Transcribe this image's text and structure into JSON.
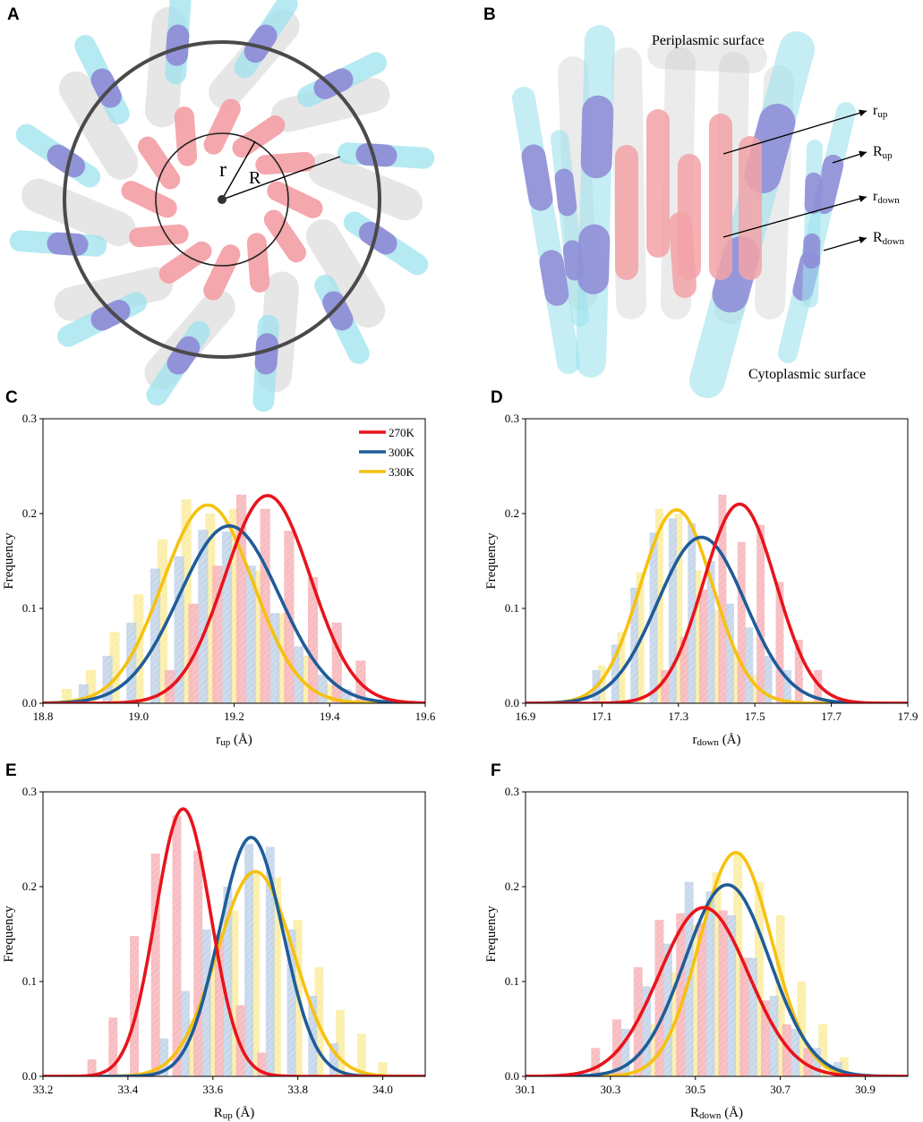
{
  "panels": {
    "a": {
      "label": "A",
      "r": "r",
      "R": "R"
    },
    "b": {
      "label": "B",
      "periplasmic": "Periplasmic surface",
      "cytoplasmic": "Cytoplasmic surface",
      "ann": [
        {
          "main": "r",
          "sub": "up"
        },
        {
          "main": "R",
          "sub": "up"
        },
        {
          "main": "r",
          "sub": "down"
        },
        {
          "main": "R",
          "sub": "down"
        }
      ]
    }
  },
  "colors": {
    "270K": "#e8141c",
    "300K": "#1f5c99",
    "330K": "#f6c10f",
    "bar270": "#f7b8bd",
    "bar300": "#c5d6ea",
    "bar330": "#fbeea6",
    "helixPink": "#f4a3a8",
    "helixPurple": "#8e8ad6",
    "helixCyan": "#9ee3ee",
    "helixGray": "#c8c8c8"
  },
  "legend": [
    "270K",
    "300K",
    "330K"
  ],
  "chart_data": [
    {
      "panel": "C",
      "type": "bar",
      "ylabel": "Frequency",
      "xlabel_main": "r",
      "xlabel_sub": "up",
      "xlabel_unit": " (Å)",
      "xlim": [
        18.8,
        19.6
      ],
      "ylim": [
        0,
        0.3
      ],
      "binwidth": 0.05,
      "xticks": [
        "18.8",
        "19.0",
        "19.2",
        "19.4",
        "19.6"
      ],
      "yticks": [
        "0.0",
        "0.1",
        "0.2",
        "0.3"
      ],
      "series": [
        {
          "name": "270K",
          "mu": 19.27,
          "sigma": 0.09,
          "peak": 0.219,
          "bars": [
            [
              19.05,
              0.035
            ],
            [
              19.1,
              0.105
            ],
            [
              19.15,
              0.145
            ],
            [
              19.2,
              0.22
            ],
            [
              19.25,
              0.205
            ],
            [
              19.3,
              0.182
            ],
            [
              19.35,
              0.133
            ],
            [
              19.4,
              0.085
            ],
            [
              19.45,
              0.045
            ]
          ]
        },
        {
          "name": "300K",
          "mu": 19.19,
          "sigma": 0.105,
          "peak": 0.187,
          "bars": [
            [
              18.9,
              0.02
            ],
            [
              18.95,
              0.05
            ],
            [
              19.0,
              0.085
            ],
            [
              19.05,
              0.142
            ],
            [
              19.1,
              0.155
            ],
            [
              19.15,
              0.183
            ],
            [
              19.2,
              0.181
            ],
            [
              19.25,
              0.145
            ],
            [
              19.3,
              0.095
            ],
            [
              19.35,
              0.06
            ],
            [
              19.4,
              0.03
            ],
            [
              19.45,
              0.015
            ]
          ]
        },
        {
          "name": "330K",
          "mu": 19.145,
          "sigma": 0.095,
          "peak": 0.209,
          "bars": [
            [
              18.85,
              0.015
            ],
            [
              18.9,
              0.035
            ],
            [
              18.95,
              0.075
            ],
            [
              19.0,
              0.115
            ],
            [
              19.05,
              0.173
            ],
            [
              19.1,
              0.215
            ],
            [
              19.15,
              0.2
            ],
            [
              19.2,
              0.205
            ],
            [
              19.25,
              0.14
            ],
            [
              19.3,
              0.095
            ],
            [
              19.35,
              0.05
            ],
            [
              19.4,
              0.02
            ]
          ]
        }
      ]
    },
    {
      "panel": "D",
      "type": "bar",
      "ylabel": "Frequency",
      "xlabel_main": "r",
      "xlabel_sub": "down",
      "xlabel_unit": " (Å)",
      "xlim": [
        16.9,
        17.9
      ],
      "ylim": [
        0,
        0.3
      ],
      "binwidth": 0.05,
      "xticks": [
        "16.9",
        "17.1",
        "17.3",
        "17.5",
        "17.7",
        "17.9"
      ],
      "yticks": [
        "0.0",
        "0.1",
        "0.2",
        "0.3"
      ],
      "series": [
        {
          "name": "270K",
          "mu": 17.46,
          "sigma": 0.095,
          "peak": 0.21,
          "bars": [
            [
              17.25,
              0.035
            ],
            [
              17.3,
              0.07
            ],
            [
              17.35,
              0.12
            ],
            [
              17.4,
              0.22
            ],
            [
              17.45,
              0.17
            ],
            [
              17.5,
              0.188
            ],
            [
              17.55,
              0.128
            ],
            [
              17.6,
              0.067
            ],
            [
              17.65,
              0.035
            ]
          ]
        },
        {
          "name": "300K",
          "mu": 17.36,
          "sigma": 0.115,
          "peak": 0.175,
          "bars": [
            [
              17.1,
              0.035
            ],
            [
              17.15,
              0.062
            ],
            [
              17.2,
              0.122
            ],
            [
              17.25,
              0.18
            ],
            [
              17.3,
              0.195
            ],
            [
              17.35,
              0.19
            ],
            [
              17.4,
              0.15
            ],
            [
              17.45,
              0.105
            ],
            [
              17.5,
              0.08
            ],
            [
              17.55,
              0.05
            ],
            [
              17.6,
              0.035
            ]
          ]
        },
        {
          "name": "330K",
          "mu": 17.295,
          "sigma": 0.095,
          "peak": 0.204,
          "bars": [
            [
              17.1,
              0.04
            ],
            [
              17.15,
              0.075
            ],
            [
              17.2,
              0.138
            ],
            [
              17.25,
              0.205
            ],
            [
              17.3,
              0.2
            ],
            [
              17.35,
              0.14
            ],
            [
              17.4,
              0.098
            ],
            [
              17.45,
              0.055
            ],
            [
              17.5,
              0.03
            ]
          ]
        }
      ]
    },
    {
      "panel": "E",
      "type": "bar",
      "ylabel": "Frequency",
      "xlabel_main": "R",
      "xlabel_sub": "up",
      "xlabel_unit": " (Å)",
      "xlim": [
        33.2,
        34.1
      ],
      "ylim": [
        0,
        0.3
      ],
      "binwidth": 0.05,
      "xticks": [
        "33.2",
        "33.4",
        "33.6",
        "33.8",
        "34.0"
      ],
      "yticks": [
        "0.0",
        "0.1",
        "0.2",
        "0.3"
      ],
      "series": [
        {
          "name": "270K",
          "mu": 33.53,
          "sigma": 0.065,
          "peak": 0.282,
          "bars": [
            [
              33.3,
              0.018
            ],
            [
              33.35,
              0.062
            ],
            [
              33.4,
              0.148
            ],
            [
              33.45,
              0.235
            ],
            [
              33.5,
              0.275
            ],
            [
              33.55,
              0.238
            ],
            [
              33.6,
              0.15
            ],
            [
              33.65,
              0.075
            ],
            [
              33.7,
              0.025
            ]
          ]
        },
        {
          "name": "300K",
          "mu": 33.69,
          "sigma": 0.075,
          "peak": 0.252,
          "bars": [
            [
              33.5,
              0.04
            ],
            [
              33.55,
              0.09
            ],
            [
              33.6,
              0.155
            ],
            [
              33.65,
              0.2
            ],
            [
              33.7,
              0.245
            ],
            [
              33.75,
              0.242
            ],
            [
              33.8,
              0.155
            ],
            [
              33.85,
              0.085
            ],
            [
              33.9,
              0.035
            ]
          ]
        },
        {
          "name": "330K",
          "mu": 33.7,
          "sigma": 0.09,
          "peak": 0.216,
          "bars": [
            [
              33.55,
              0.06
            ],
            [
              33.6,
              0.12
            ],
            [
              33.65,
              0.175
            ],
            [
              33.7,
              0.215
            ],
            [
              33.75,
              0.21
            ],
            [
              33.8,
              0.165
            ],
            [
              33.85,
              0.115
            ],
            [
              33.9,
              0.07
            ],
            [
              33.95,
              0.045
            ],
            [
              34.0,
              0.015
            ]
          ]
        }
      ]
    },
    {
      "panel": "F",
      "type": "bar",
      "ylabel": "Frequency",
      "xlabel_main": "R",
      "xlabel_sub": "down",
      "xlabel_unit": " (Å)",
      "xlim": [
        30.1,
        31.0
      ],
      "ylim": [
        0,
        0.3
      ],
      "binwidth": 0.05,
      "xticks": [
        "30.1",
        "30.3",
        "30.5",
        "30.7",
        "30.9"
      ],
      "yticks": [
        "0.0",
        "0.1",
        "0.2",
        "0.3"
      ],
      "series": [
        {
          "name": "270K",
          "mu": 30.52,
          "sigma": 0.105,
          "peak": 0.178,
          "bars": [
            [
              30.25,
              0.03
            ],
            [
              30.3,
              0.06
            ],
            [
              30.35,
              0.115
            ],
            [
              30.4,
              0.165
            ],
            [
              30.45,
              0.172
            ],
            [
              30.5,
              0.162
            ],
            [
              30.55,
              0.175
            ],
            [
              30.6,
              0.125
            ],
            [
              30.65,
              0.08
            ],
            [
              30.7,
              0.055
            ],
            [
              30.75,
              0.03
            ]
          ]
        },
        {
          "name": "300K",
          "mu": 30.575,
          "sigma": 0.1,
          "peak": 0.202,
          "bars": [
            [
              30.35,
              0.05
            ],
            [
              30.4,
              0.095
            ],
            [
              30.45,
              0.14
            ],
            [
              30.5,
              0.205
            ],
            [
              30.55,
              0.195
            ],
            [
              30.6,
              0.17
            ],
            [
              30.65,
              0.125
            ],
            [
              30.7,
              0.085
            ],
            [
              30.75,
              0.05
            ],
            [
              30.8,
              0.03
            ],
            [
              30.85,
              0.015
            ]
          ]
        },
        {
          "name": "330K",
          "mu": 30.595,
          "sigma": 0.085,
          "peak": 0.236,
          "bars": [
            [
              30.4,
              0.055
            ],
            [
              30.45,
              0.11
            ],
            [
              30.5,
              0.16
            ],
            [
              30.55,
              0.215
            ],
            [
              30.6,
              0.237
            ],
            [
              30.65,
              0.205
            ],
            [
              30.7,
              0.17
            ],
            [
              30.75,
              0.1
            ],
            [
              30.8,
              0.055
            ],
            [
              30.85,
              0.02
            ]
          ]
        }
      ]
    }
  ]
}
